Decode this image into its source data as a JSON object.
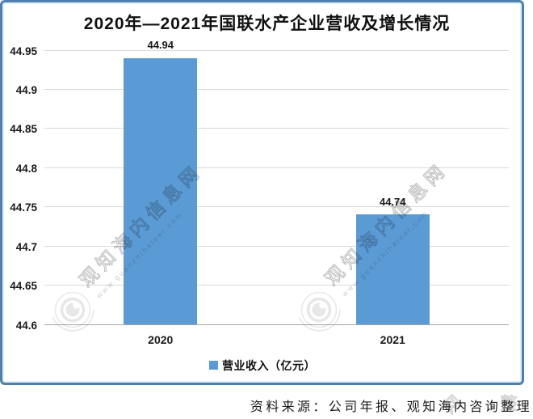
{
  "title": "2020年—2021年国联水产企业营收及增长情况",
  "source_note": "资料来源：公司年报、观知海内咨询整理",
  "legend": {
    "label": "营业收入（亿元）",
    "swatch_color": "#5b9bd5"
  },
  "watermark": {
    "site_text": "观知海内信息网",
    "domain_text": "www.guanzhihainei.com",
    "fragments": [
      "网",
      "整"
    ]
  },
  "colors": {
    "bar": "#5b9bd5",
    "frame_border": "#4e7fad",
    "gridline": "#d9d9d9",
    "axis": "#a6a6a6"
  },
  "chart_data": {
    "type": "bar",
    "categories": [
      "2020",
      "2021"
    ],
    "series": [
      {
        "name": "营业收入（亿元）",
        "values": [
          44.94,
          44.74
        ]
      }
    ],
    "data_labels": [
      "44.94",
      "44.74"
    ],
    "title": "2020年—2021年国联水产企业营收及增长情况",
    "xlabel": "",
    "ylabel": "",
    "ylim": [
      44.6,
      44.95
    ],
    "yticks": [
      44.6,
      44.65,
      44.7,
      44.75,
      44.8,
      44.85,
      44.9,
      44.95
    ],
    "ytick_labels": [
      "44.6",
      "44.65",
      "44.7",
      "44.75",
      "44.8",
      "44.85",
      "44.9",
      "44.95"
    ],
    "grid": true,
    "legend_position": "bottom"
  }
}
